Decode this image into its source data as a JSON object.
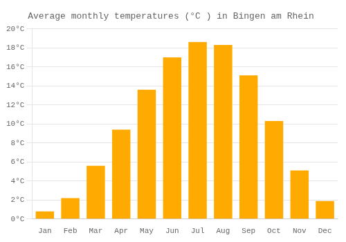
{
  "chart_data": {
    "type": "bar",
    "title": "Average monthly temperatures (°C ) in Bingen am Rhein",
    "categories": [
      "Jan",
      "Feb",
      "Mar",
      "Apr",
      "May",
      "Jun",
      "Jul",
      "Aug",
      "Sep",
      "Oct",
      "Nov",
      "Dec"
    ],
    "values": [
      0.8,
      2.2,
      5.6,
      9.4,
      13.6,
      17.0,
      18.6,
      18.3,
      15.1,
      10.3,
      5.1,
      1.9
    ],
    "color": "#FFAA00",
    "ylim": [
      0,
      20
    ],
    "yticks": [
      {
        "value": 0,
        "label": "0°C"
      },
      {
        "value": 2,
        "label": "2°C"
      },
      {
        "value": 4,
        "label": "4°C"
      },
      {
        "value": 6,
        "label": "6°C"
      },
      {
        "value": 8,
        "label": "8°C"
      },
      {
        "value": 10,
        "label": "10°C"
      },
      {
        "value": 12,
        "label": "12°C"
      },
      {
        "value": 14,
        "label": "14°C"
      },
      {
        "value": 16,
        "label": "16°C"
      },
      {
        "value": 18,
        "label": "18°C"
      },
      {
        "value": 20,
        "label": "20°C"
      }
    ],
    "grid": true
  }
}
